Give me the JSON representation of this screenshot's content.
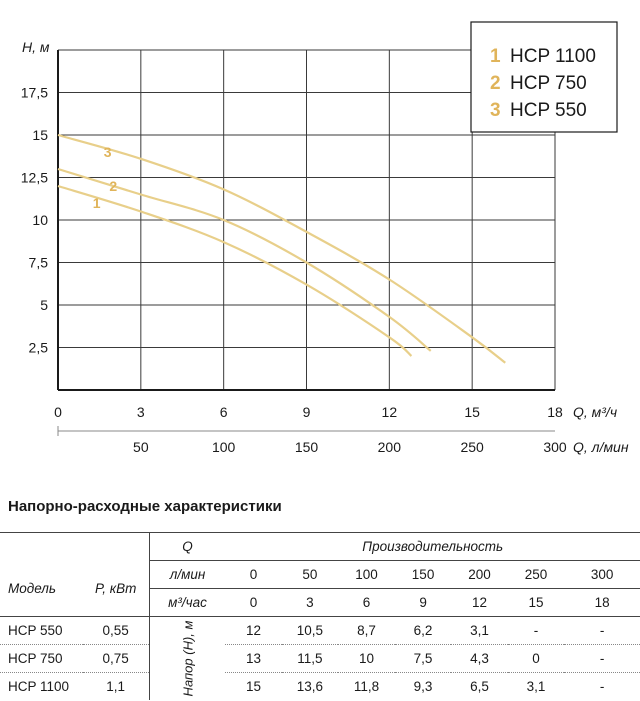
{
  "chart_data": {
    "type": "line",
    "ylabel": "H, м",
    "xlabel": "Q, м³/ч",
    "xlabel_secondary": "Q, л/мин",
    "xlim": [
      0,
      18
    ],
    "ylim": [
      0,
      20
    ],
    "y_ticks": [
      "2,5",
      "5",
      "7,5",
      "10",
      "12,5",
      "15",
      "17,5"
    ],
    "x_ticks": [
      "0",
      "3",
      "6",
      "9",
      "12",
      "15",
      "18"
    ],
    "x_secondary_ticks": [
      "50",
      "100",
      "150",
      "200",
      "250",
      "300"
    ],
    "grid": true,
    "legend_position": "top-right",
    "series": [
      {
        "name": "HCP 1100",
        "num": "1",
        "x": [
          0,
          3,
          6,
          9,
          12,
          15,
          16.2
        ],
        "y": [
          15,
          13.6,
          11.8,
          9.3,
          6.5,
          3.1,
          1.6
        ]
      },
      {
        "name": "HCP 750",
        "num": "2",
        "x": [
          0,
          3,
          6,
          9,
          12,
          13.5
        ],
        "y": [
          13,
          11.5,
          10,
          7.5,
          4.3,
          2.3
        ]
      },
      {
        "name": "HCP 550",
        "num": "3",
        "x": [
          0,
          3,
          6,
          9,
          12,
          12.8
        ],
        "y": [
          12,
          10.5,
          8.7,
          6.2,
          3.1,
          2
        ]
      }
    ],
    "curve_color": "#e8cf8a",
    "number_color": "#e0b45a"
  },
  "table": {
    "title": "Напорно-расходные характеристики",
    "col_model": "Модель",
    "col_power": "P, кВт",
    "col_q": "Q",
    "col_perf": "Производительность",
    "unit_lmin": "л/мин",
    "unit_m3h": "м³/час",
    "lmin_values": [
      "0",
      "50",
      "100",
      "150",
      "200",
      "250",
      "300"
    ],
    "m3h_values": [
      "0",
      "3",
      "6",
      "9",
      "12",
      "15",
      "18"
    ],
    "head_label": "Напор (H), м",
    "rows": [
      {
        "model": "HCP 550",
        "power": "0,55",
        "values": [
          "12",
          "10,5",
          "8,7",
          "6,2",
          "3,1",
          "-",
          "-"
        ]
      },
      {
        "model": "HCP 750",
        "power": "0,75",
        "values": [
          "13",
          "11,5",
          "10",
          "7,5",
          "4,3",
          "0",
          "-"
        ]
      },
      {
        "model": "HCP 1100",
        "power": "1,1",
        "values": [
          "15",
          "13,6",
          "11,8",
          "9,3",
          "6,5",
          "3,1",
          "-"
        ]
      }
    ]
  }
}
